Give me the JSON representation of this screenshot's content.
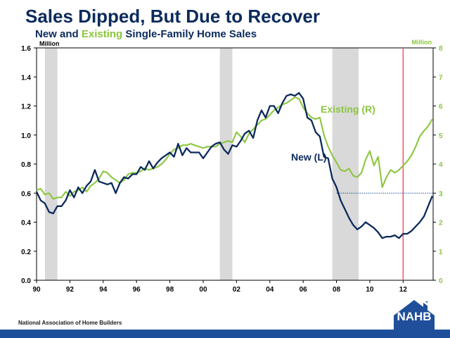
{
  "title": "Sales Dipped, But Due to Recover",
  "subtitle": {
    "part1": "New and ",
    "part2": "Existing",
    "part3": " Single-Family Home Sales"
  },
  "footer": {
    "org": "National Association of Home Builders",
    "logo": "NAHB"
  },
  "colors": {
    "title": "#0b2a5c",
    "new_series": "#0b2a5c",
    "existing_series": "#8cc63f",
    "recession": "#d9d9d9",
    "marker_line": "#ee5566",
    "bottom_bar": "#1f4f9a"
  },
  "chart_data": {
    "type": "line",
    "xlim": [
      1990,
      2013.8
    ],
    "x_ticks": [
      "90",
      "92",
      "94",
      "96",
      "98",
      "00",
      "02",
      "04",
      "06",
      "08",
      "10",
      "12"
    ],
    "left_axis": {
      "unit_label": "Million",
      "ylim": [
        0,
        1.6
      ],
      "ticks": [
        "0.0",
        "0.2",
        "0.4",
        "0.6",
        "0.8",
        "1.0",
        "1.2",
        "1.4",
        "1.6"
      ]
    },
    "right_axis": {
      "unit_label": "Million",
      "ylim": [
        0,
        8
      ],
      "ticks": [
        "0",
        "1",
        "2",
        "3",
        "4",
        "5",
        "6",
        "7",
        "8"
      ]
    },
    "recession_shading": [
      [
        1990.5,
        1991.25
      ],
      [
        2001.0,
        2001.75
      ],
      [
        2007.75,
        2009.33
      ]
    ],
    "reference_line": {
      "from_x": 2008.0,
      "to_x": 2013.8,
      "y_left": 0.6
    },
    "vertical_marker": {
      "x": 2012.0
    },
    "series": [
      {
        "name": "New",
        "label": "New (L)",
        "axis": "left",
        "points": [
          [
            1990.0,
            0.61
          ],
          [
            1990.25,
            0.55
          ],
          [
            1990.5,
            0.53
          ],
          [
            1990.75,
            0.47
          ],
          [
            1991.0,
            0.46
          ],
          [
            1991.25,
            0.51
          ],
          [
            1991.5,
            0.51
          ],
          [
            1991.75,
            0.55
          ],
          [
            1992.0,
            0.62
          ],
          [
            1992.25,
            0.57
          ],
          [
            1992.5,
            0.64
          ],
          [
            1992.75,
            0.6
          ],
          [
            1993.0,
            0.65
          ],
          [
            1993.25,
            0.68
          ],
          [
            1993.5,
            0.76
          ],
          [
            1993.75,
            0.68
          ],
          [
            1994.0,
            0.67
          ],
          [
            1994.25,
            0.66
          ],
          [
            1994.5,
            0.67
          ],
          [
            1994.75,
            0.6
          ],
          [
            1995.0,
            0.67
          ],
          [
            1995.25,
            0.71
          ],
          [
            1995.5,
            0.7
          ],
          [
            1995.75,
            0.73
          ],
          [
            1996.0,
            0.73
          ],
          [
            1996.25,
            0.78
          ],
          [
            1996.5,
            0.76
          ],
          [
            1996.75,
            0.82
          ],
          [
            1997.0,
            0.77
          ],
          [
            1997.25,
            0.81
          ],
          [
            1997.5,
            0.84
          ],
          [
            1997.75,
            0.86
          ],
          [
            1998.0,
            0.88
          ],
          [
            1998.25,
            0.85
          ],
          [
            1998.5,
            0.94
          ],
          [
            1998.75,
            0.86
          ],
          [
            1999.0,
            0.91
          ],
          [
            1999.25,
            0.88
          ],
          [
            1999.5,
            0.88
          ],
          [
            1999.75,
            0.88
          ],
          [
            2000.0,
            0.84
          ],
          [
            2000.25,
            0.88
          ],
          [
            2000.5,
            0.92
          ],
          [
            2000.75,
            0.94
          ],
          [
            2001.0,
            0.95
          ],
          [
            2001.25,
            0.9
          ],
          [
            2001.5,
            0.87
          ],
          [
            2001.75,
            0.93
          ],
          [
            2002.0,
            0.92
          ],
          [
            2002.25,
            0.96
          ],
          [
            2002.5,
            1.01
          ],
          [
            2002.75,
            1.03
          ],
          [
            2003.0,
            0.98
          ],
          [
            2003.25,
            1.1
          ],
          [
            2003.5,
            1.17
          ],
          [
            2003.75,
            1.12
          ],
          [
            2004.0,
            1.2
          ],
          [
            2004.25,
            1.2
          ],
          [
            2004.5,
            1.15
          ],
          [
            2004.75,
            1.22
          ],
          [
            2005.0,
            1.27
          ],
          [
            2005.25,
            1.28
          ],
          [
            2005.5,
            1.27
          ],
          [
            2005.75,
            1.29
          ],
          [
            2006.0,
            1.25
          ],
          [
            2006.25,
            1.12
          ],
          [
            2006.5,
            1.1
          ],
          [
            2006.75,
            1.02
          ],
          [
            2007.0,
            0.99
          ],
          [
            2007.25,
            0.85
          ],
          [
            2007.5,
            0.84
          ],
          [
            2007.75,
            0.7
          ],
          [
            2008.0,
            0.64
          ],
          [
            2008.25,
            0.55
          ],
          [
            2008.5,
            0.49
          ],
          [
            2008.75,
            0.43
          ],
          [
            2009.0,
            0.38
          ],
          [
            2009.25,
            0.35
          ],
          [
            2009.5,
            0.37
          ],
          [
            2009.75,
            0.4
          ],
          [
            2010.0,
            0.38
          ],
          [
            2010.25,
            0.36
          ],
          [
            2010.5,
            0.33
          ],
          [
            2010.75,
            0.29
          ],
          [
            2011.0,
            0.3
          ],
          [
            2011.25,
            0.3
          ],
          [
            2011.5,
            0.31
          ],
          [
            2011.75,
            0.29
          ],
          [
            2012.0,
            0.32
          ],
          [
            2012.25,
            0.32
          ],
          [
            2012.5,
            0.34
          ],
          [
            2012.75,
            0.37
          ],
          [
            2013.0,
            0.4
          ],
          [
            2013.25,
            0.44
          ],
          [
            2013.5,
            0.51
          ],
          [
            2013.75,
            0.58
          ]
        ]
      },
      {
        "name": "Existing",
        "label": "Existing (R)",
        "axis": "right",
        "points": [
          [
            1990.0,
            3.1
          ],
          [
            1990.25,
            3.15
          ],
          [
            1990.5,
            2.95
          ],
          [
            1990.75,
            3.0
          ],
          [
            1991.0,
            2.8
          ],
          [
            1991.25,
            2.85
          ],
          [
            1991.5,
            2.85
          ],
          [
            1991.75,
            3.05
          ],
          [
            1992.0,
            2.9
          ],
          [
            1992.25,
            3.05
          ],
          [
            1992.5,
            3.1
          ],
          [
            1992.75,
            3.2
          ],
          [
            1993.0,
            3.05
          ],
          [
            1993.25,
            3.25
          ],
          [
            1993.5,
            3.35
          ],
          [
            1993.75,
            3.5
          ],
          [
            1994.0,
            3.75
          ],
          [
            1994.25,
            3.7
          ],
          [
            1994.5,
            3.55
          ],
          [
            1994.75,
            3.45
          ],
          [
            1995.0,
            3.35
          ],
          [
            1995.25,
            3.45
          ],
          [
            1995.5,
            3.65
          ],
          [
            1995.75,
            3.7
          ],
          [
            1996.0,
            3.7
          ],
          [
            1996.25,
            3.75
          ],
          [
            1996.5,
            3.85
          ],
          [
            1996.75,
            3.8
          ],
          [
            1997.0,
            3.85
          ],
          [
            1997.25,
            3.9
          ],
          [
            1997.5,
            4.0
          ],
          [
            1997.75,
            4.15
          ],
          [
            1998.0,
            4.35
          ],
          [
            1998.25,
            4.5
          ],
          [
            1998.5,
            4.55
          ],
          [
            1998.75,
            4.65
          ],
          [
            1999.0,
            4.65
          ],
          [
            1999.25,
            4.7
          ],
          [
            1999.5,
            4.65
          ],
          [
            1999.75,
            4.6
          ],
          [
            2000.0,
            4.55
          ],
          [
            2000.25,
            4.6
          ],
          [
            2000.5,
            4.6
          ],
          [
            2000.75,
            4.6
          ],
          [
            2001.0,
            4.7
          ],
          [
            2001.25,
            4.75
          ],
          [
            2001.5,
            4.8
          ],
          [
            2001.75,
            4.75
          ],
          [
            2002.0,
            5.1
          ],
          [
            2002.25,
            4.95
          ],
          [
            2002.5,
            4.75
          ],
          [
            2002.75,
            5.05
          ],
          [
            2003.0,
            5.2
          ],
          [
            2003.25,
            5.35
          ],
          [
            2003.5,
            5.5
          ],
          [
            2003.75,
            5.55
          ],
          [
            2004.0,
            5.7
          ],
          [
            2004.25,
            5.85
          ],
          [
            2004.5,
            5.95
          ],
          [
            2004.75,
            6.05
          ],
          [
            2005.0,
            6.1
          ],
          [
            2005.25,
            6.2
          ],
          [
            2005.5,
            6.3
          ],
          [
            2005.75,
            6.25
          ],
          [
            2006.0,
            5.95
          ],
          [
            2006.25,
            5.75
          ],
          [
            2006.5,
            5.6
          ],
          [
            2006.75,
            5.55
          ],
          [
            2007.0,
            5.6
          ],
          [
            2007.25,
            5.0
          ],
          [
            2007.5,
            4.6
          ],
          [
            2007.75,
            4.3
          ],
          [
            2008.0,
            4.05
          ],
          [
            2008.25,
            3.8
          ],
          [
            2008.5,
            3.75
          ],
          [
            2008.75,
            3.85
          ],
          [
            2009.0,
            3.6
          ],
          [
            2009.25,
            3.55
          ],
          [
            2009.5,
            3.7
          ],
          [
            2009.75,
            4.15
          ],
          [
            2010.0,
            4.45
          ],
          [
            2010.25,
            3.95
          ],
          [
            2010.5,
            4.25
          ],
          [
            2010.75,
            3.2
          ],
          [
            2011.0,
            3.55
          ],
          [
            2011.25,
            3.8
          ],
          [
            2011.5,
            3.7
          ],
          [
            2011.75,
            3.8
          ],
          [
            2012.0,
            3.95
          ],
          [
            2012.25,
            4.1
          ],
          [
            2012.5,
            4.3
          ],
          [
            2012.75,
            4.6
          ],
          [
            2013.0,
            4.95
          ],
          [
            2013.25,
            5.15
          ],
          [
            2013.5,
            5.3
          ],
          [
            2013.75,
            5.55
          ]
        ]
      }
    ]
  }
}
